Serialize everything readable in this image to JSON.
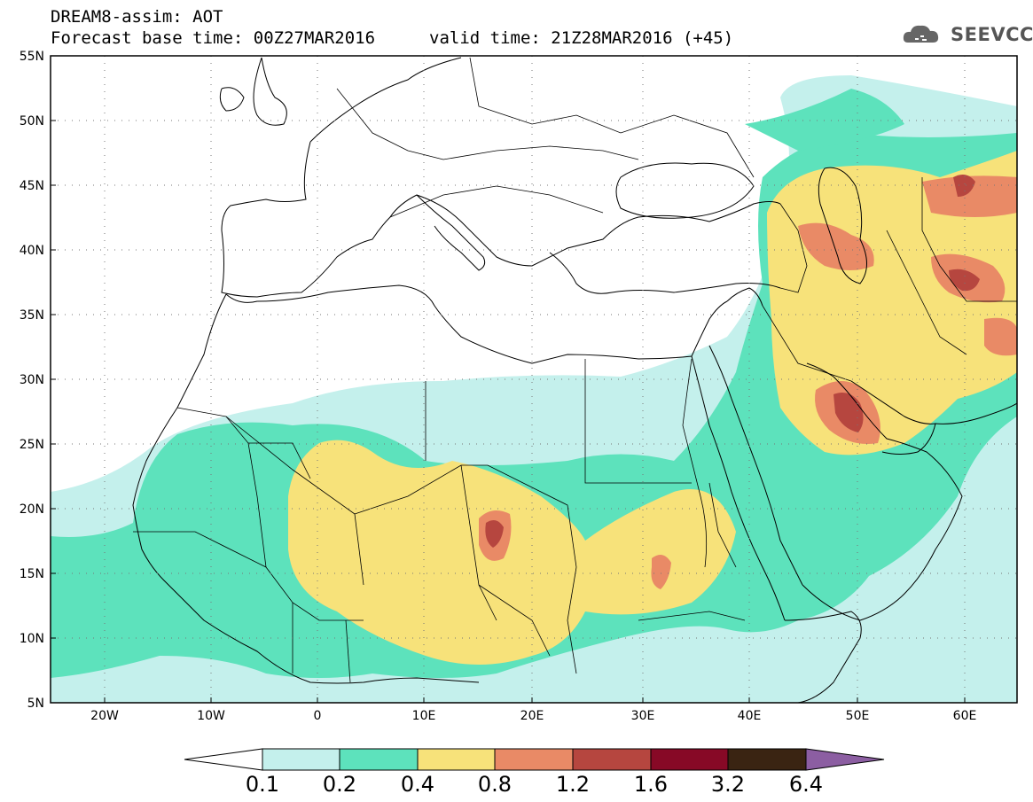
{
  "header": {
    "line1": "DREAM8-assim: AOT",
    "line2": "Forecast base time: 00Z27MAR2016",
    "line3": "valid time: 21Z28MAR2016 (+45)",
    "logo_text": "SEEVCCC"
  },
  "map": {
    "lat_labels": [
      "55N",
      "50N",
      "45N",
      "40N",
      "35N",
      "30N",
      "25N",
      "20N",
      "15N",
      "10N",
      "5N"
    ],
    "lon_labels": [
      "20W",
      "10W",
      "0",
      "10E",
      "20E",
      "30E",
      "40E",
      "50E",
      "60E"
    ]
  },
  "colorbar": {
    "labels": [
      "0.1",
      "0.2",
      "0.4",
      "0.8",
      "1.2",
      "1.6",
      "3.2",
      "6.4"
    ],
    "colors": [
      "#ffffff",
      "#c4f0ec",
      "#5de2bc",
      "#f7e27a",
      "#e98a66",
      "#b6463f",
      "#870926",
      "#3a2412",
      "#8c5ea2"
    ]
  },
  "icons": {
    "logo": "cloud-logo-icon"
  }
}
